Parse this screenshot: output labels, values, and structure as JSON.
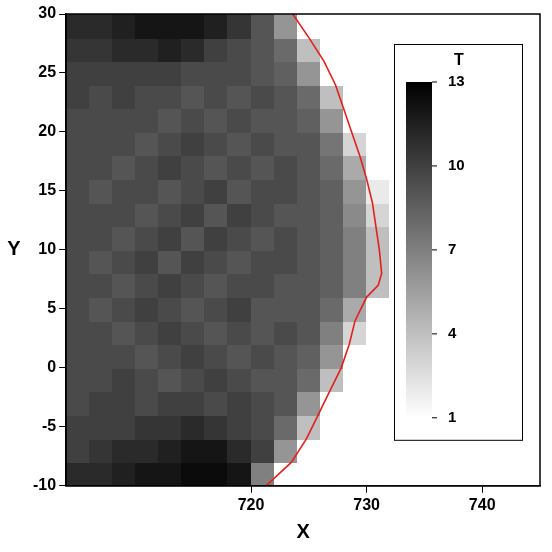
{
  "chart_data": {
    "type": "heatmap",
    "x_label": "X",
    "y_label": "Y",
    "xlim": [
      704,
      745
    ],
    "xticks": [
      720,
      730,
      740
    ],
    "ylim": [
      -10,
      30
    ],
    "yticks": [
      -10,
      -5,
      0,
      5,
      10,
      15,
      20,
      25,
      30
    ],
    "grid": false,
    "cells": {
      "x_edges": [
        704,
        706,
        708,
        710,
        712,
        714,
        716,
        718,
        720,
        722,
        724,
        726,
        728,
        730,
        732,
        745
      ],
      "y_edges": [
        -10,
        -8,
        -6,
        -4,
        -2,
        0,
        2,
        4,
        6,
        8,
        10,
        12,
        14,
        16,
        18,
        20,
        22,
        24,
        26,
        28,
        30
      ],
      "values": [
        [
          11,
          11,
          11.5,
          12,
          12,
          12.5,
          12.5,
          12,
          7,
          1,
          1,
          1,
          1,
          1,
          1
        ],
        [
          10,
          10.5,
          11,
          11,
          11.5,
          12,
          12,
          11,
          10,
          6,
          1,
          1,
          1,
          1,
          1
        ],
        [
          10,
          10,
          10,
          10.5,
          10.5,
          11,
          10.5,
          10,
          9.5,
          8,
          4,
          1,
          1,
          1,
          1
        ],
        [
          9.5,
          10,
          10,
          9.5,
          10,
          10,
          9.5,
          10,
          9.5,
          9,
          6,
          1,
          1,
          1,
          1
        ],
        [
          9.5,
          9.5,
          10,
          9.5,
          9,
          9.5,
          10,
          9.5,
          9,
          9,
          8,
          4,
          1,
          1,
          1
        ],
        [
          9.5,
          9.5,
          9.5,
          9,
          9.5,
          10,
          9.5,
          9,
          9.5,
          9,
          8.5,
          6,
          1,
          1,
          1
        ],
        [
          9.5,
          9.5,
          9,
          9.5,
          10,
          9.5,
          9,
          9.5,
          9,
          9.5,
          9,
          7,
          3,
          1,
          1
        ],
        [
          9.5,
          9,
          9.5,
          10,
          9.5,
          9,
          9.5,
          10,
          9,
          9,
          9,
          8,
          5,
          1,
          1
        ],
        [
          9.5,
          9.5,
          9,
          9.5,
          10,
          9.5,
          9,
          9.5,
          9.5,
          9,
          9,
          8.5,
          7,
          4,
          1
        ],
        [
          9.5,
          9,
          9.5,
          10,
          9,
          10,
          9.5,
          9,
          9.5,
          9.5,
          9,
          8.5,
          7,
          4,
          1
        ],
        [
          9.5,
          9.5,
          9,
          9.5,
          10,
          9,
          10,
          9.5,
          9,
          9.5,
          9,
          8.5,
          7,
          4,
          1
        ],
        [
          9.5,
          9.5,
          9.5,
          9,
          9.5,
          10,
          9,
          10,
          9.5,
          9,
          9,
          8.5,
          6.5,
          3,
          1
        ],
        [
          9.5,
          9,
          9.5,
          9.5,
          9,
          9.5,
          10,
          9,
          9.5,
          9.5,
          9,
          8.5,
          6,
          2,
          1
        ],
        [
          9.5,
          9.5,
          9,
          9.5,
          10,
          9.5,
          9,
          9.5,
          9,
          9.5,
          9,
          8,
          5,
          1,
          1
        ],
        [
          9.5,
          9.5,
          9.5,
          9,
          9.5,
          10,
          9.5,
          9,
          9.5,
          9,
          9,
          7.5,
          3,
          1,
          1
        ],
        [
          9.5,
          9.5,
          9.5,
          9.5,
          9,
          9.5,
          9,
          9.5,
          9,
          9,
          8.5,
          6,
          1,
          1,
          1
        ],
        [
          10,
          9.5,
          10,
          9.5,
          9.5,
          9,
          9.5,
          9,
          9.5,
          9,
          8,
          4,
          1,
          1,
          1
        ],
        [
          10,
          10,
          10,
          10,
          10,
          9.5,
          9.5,
          9.5,
          9,
          8.5,
          6,
          1,
          1,
          1,
          1
        ],
        [
          10.5,
          10.5,
          11,
          11,
          11.5,
          11,
          10,
          9.5,
          9,
          8,
          4,
          1,
          1,
          1,
          1
        ],
        [
          11,
          11,
          11.5,
          12,
          12,
          12,
          11.5,
          10.5,
          9,
          6,
          1,
          1,
          1,
          1,
          1
        ]
      ]
    },
    "colorbar": {
      "title": "T",
      "range": [
        1,
        13
      ],
      "ticks": [
        1,
        4,
        7,
        10,
        13
      ]
    },
    "series": [
      {
        "type": "line",
        "color": "#e0201e",
        "line_style": "solid",
        "x": [
          721.3,
          723.5,
          724.8,
          725.8,
          726.8,
          727.8,
          728.5,
          729,
          730,
          731,
          731.3,
          731.1,
          730.8,
          730.5,
          730,
          729.4,
          728.7,
          728,
          727.3,
          726.3,
          725,
          723.6
        ],
        "y": [
          -10,
          -8,
          -6,
          -4,
          -2,
          0,
          2,
          4,
          6,
          7,
          8,
          10,
          12,
          14,
          16,
          18,
          20,
          22,
          24,
          26,
          28,
          30
        ]
      }
    ]
  }
}
